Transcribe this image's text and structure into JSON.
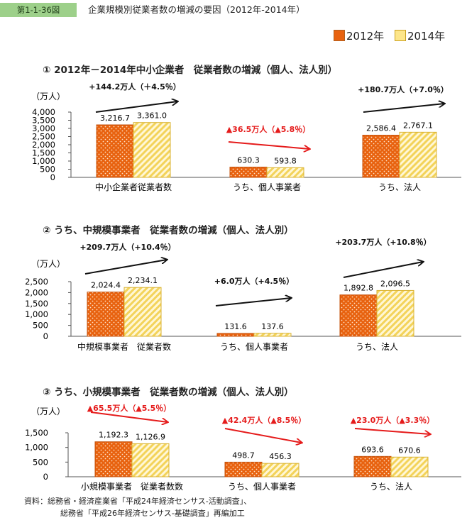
{
  "figure": {
    "label": "第1-1-36図",
    "title": "企業規模別従業者数の増減の要因（2012年-2014年）"
  },
  "legend": {
    "a": "2012年",
    "b": "2014年"
  },
  "colors": {
    "year2012": "#e8620f",
    "year2014": "#fde68a",
    "badge": "#9dd08a",
    "up": "#111111",
    "down": "#e51b1b"
  },
  "chart_data": [
    {
      "type": "bar",
      "title": "①  2012年－2014年中小企業者　従業者数の増減（個人、法人別）",
      "ylabel": "（万人）",
      "ylim": [
        0,
        4000
      ],
      "yticks": [
        0,
        500,
        1000,
        1500,
        2000,
        2500,
        3000,
        3500,
        4000
      ],
      "ytick_labels": [
        "0",
        "500",
        "1,000",
        "1,500",
        "2,000",
        "2,500",
        "3,000",
        "3,500",
        "4,000"
      ],
      "categories": [
        "中小企業者従業者数",
        "うち、個人事業者",
        "うち、法人"
      ],
      "series": [
        {
          "name": "2012年",
          "values": [
            3216.7,
            630.3,
            2586.4
          ],
          "labels": [
            "3,216.7",
            "630.3",
            "2,586.4"
          ]
        },
        {
          "name": "2014年",
          "values": [
            3361.0,
            593.8,
            2767.1
          ],
          "labels": [
            "3,361.0",
            "593.8",
            "2,767.1"
          ]
        }
      ],
      "annotations": [
        {
          "text": "+144.2万人（＋4.5％）",
          "direction": "up"
        },
        {
          "text": "▲36.5万人（▲5.8％）",
          "direction": "down"
        },
        {
          "text": "+180.7万人（+7.0％）",
          "direction": "up"
        }
      ]
    },
    {
      "type": "bar",
      "title": "②  うち、中規模事業者　従業者数の増減（個人、法人別）",
      "ylabel": "（万人）",
      "ylim": [
        0,
        2500
      ],
      "yticks": [
        0,
        500,
        1000,
        1500,
        2000,
        2500
      ],
      "ytick_labels": [
        "0",
        "500",
        "1,000",
        "1,500",
        "2,000",
        "2,500"
      ],
      "categories": [
        "中規模事業者　従業者数",
        "うち、個人事業者",
        "うち、法人"
      ],
      "series": [
        {
          "name": "2012年",
          "values": [
            2024.4,
            131.6,
            1892.8
          ],
          "labels": [
            "2,024.4",
            "131.6",
            "1,892.8"
          ]
        },
        {
          "name": "2014年",
          "values": [
            2234.1,
            137.6,
            2096.5
          ],
          "labels": [
            "2,234.1",
            "137.6",
            "2,096.5"
          ]
        }
      ],
      "annotations": [
        {
          "text": "+209.7万人（+10.4％）",
          "direction": "up"
        },
        {
          "text": "+6.0万人（+4.5％）",
          "direction": "up"
        },
        {
          "text": "+203.7万人（+10.8％）",
          "direction": "up"
        }
      ]
    },
    {
      "type": "bar",
      "title": "③  うち、小規模事業者　従業者数の増減（個人、法人別）",
      "ylabel": "（万人）",
      "ylim": [
        0,
        1500
      ],
      "yticks": [
        0,
        500,
        1000,
        1500
      ],
      "ytick_labels": [
        "0",
        "500",
        "1,000",
        "1,500"
      ],
      "categories": [
        "小規模事業者　従業者数数",
        "うち、個人事業者",
        "うち、法人"
      ],
      "series": [
        {
          "name": "2012年",
          "values": [
            1192.3,
            498.7,
            693.6
          ],
          "labels": [
            "1,192.3",
            "498.7",
            "693.6"
          ]
        },
        {
          "name": "2014年",
          "values": [
            1126.9,
            456.3,
            670.6
          ],
          "labels": [
            "1,126.9",
            "456.3",
            "670.6"
          ]
        }
      ],
      "annotations": [
        {
          "text": "▲65.5万人（▲5.5％）",
          "direction": "down"
        },
        {
          "text": "▲42.4万人（▲8.5％）",
          "direction": "down"
        },
        {
          "text": "▲23.0万人（▲3.3％）",
          "direction": "down"
        }
      ]
    }
  ],
  "source": {
    "line1": "資料：総務省・経済産業省「平成24年経済センサス‐活動調査」、",
    "line2": "総務省「平成26年経済センサス‐基礎調査」再編加工"
  }
}
